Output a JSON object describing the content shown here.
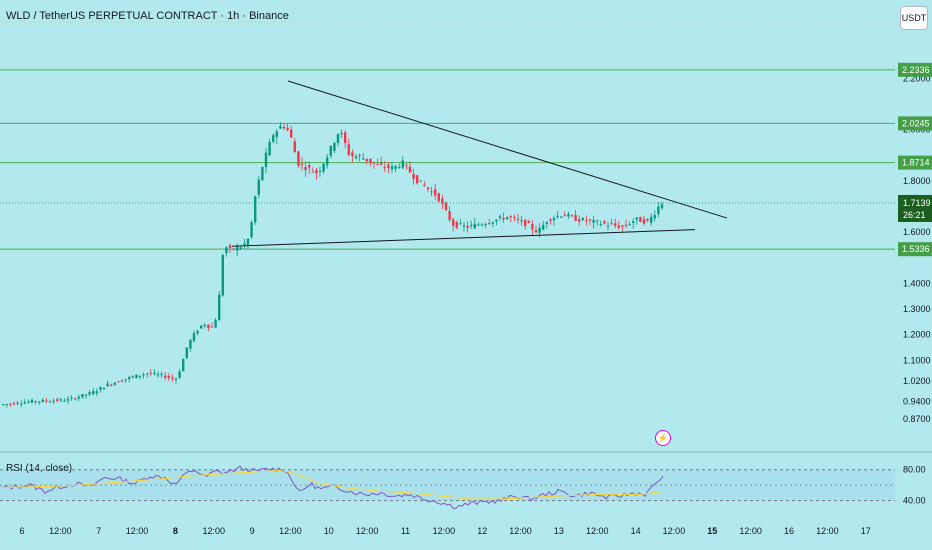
{
  "header": {
    "title": "WLD / TetherUS PERPETUAL CONTRACT · 1h · Binance",
    "currency": "USDT"
  },
  "chart_data": {
    "type": "candlestick",
    "ylim": [
      0.82,
      2.35
    ],
    "price_ticks": [
      "2.2000",
      "2.0000",
      "1.8000",
      "1.6000",
      "1.4000",
      "1.3000",
      "1.2000",
      "1.1000",
      "1.0200",
      "0.9400",
      "0.8700"
    ],
    "level_lines": [
      {
        "label": "2.2336",
        "value": 2.2336
      },
      {
        "label": "2.0245",
        "value": 2.0245
      },
      {
        "label": "1.8714",
        "value": 1.8714
      },
      {
        "label": "1.5336",
        "value": 1.5336
      }
    ],
    "current_price": {
      "label": "1.7139",
      "countdown": "26:21",
      "value": 1.7139
    },
    "x_ticks": [
      "6",
      "12:00",
      "7",
      "12:00",
      "8",
      "12:00",
      "9",
      "12:00",
      "10",
      "12:00",
      "11",
      "12:00",
      "12",
      "12:00",
      "13",
      "12:00",
      "14",
      "12:00",
      "15",
      "12:00",
      "16",
      "12:00",
      "17"
    ],
    "bold_x_ticks": [
      "8",
      "15"
    ],
    "triangle": {
      "upper": [
        [
          288,
          2.19
        ],
        [
          727,
          1.655
        ]
      ],
      "lower": [
        [
          232,
          1.545
        ],
        [
          695,
          1.61
        ]
      ]
    },
    "candle_path": [
      [
        0,
        0.925
      ],
      [
        35,
        0.94
      ],
      [
        70,
        0.945
      ],
      [
        95,
        0.975
      ],
      [
        110,
        1.005
      ],
      [
        130,
        1.03
      ],
      [
        150,
        1.05
      ],
      [
        165,
        1.04
      ],
      [
        178,
        1.025
      ],
      [
        183,
        1.07
      ],
      [
        190,
        1.16
      ],
      [
        198,
        1.21
      ],
      [
        206,
        1.245
      ],
      [
        214,
        1.225
      ],
      [
        220,
        1.28
      ],
      [
        226,
        1.55
      ],
      [
        232,
        1.53
      ],
      [
        245,
        1.545
      ],
      [
        252,
        1.58
      ],
      [
        258,
        1.75
      ],
      [
        265,
        1.86
      ],
      [
        275,
        1.98
      ],
      [
        285,
        2.02
      ],
      [
        292,
        1.99
      ],
      [
        300,
        1.87
      ],
      [
        310,
        1.85
      ],
      [
        320,
        1.83
      ],
      [
        330,
        1.9
      ],
      [
        342,
        2.0
      ],
      [
        352,
        1.9
      ],
      [
        365,
        1.89
      ],
      [
        380,
        1.86
      ],
      [
        395,
        1.85
      ],
      [
        405,
        1.87
      ],
      [
        420,
        1.8
      ],
      [
        440,
        1.74
      ],
      [
        455,
        1.63
      ],
      [
        470,
        1.62
      ],
      [
        490,
        1.64
      ],
      [
        510,
        1.66
      ],
      [
        530,
        1.63
      ],
      [
        540,
        1.6
      ],
      [
        550,
        1.65
      ],
      [
        565,
        1.67
      ],
      [
        580,
        1.65
      ],
      [
        595,
        1.64
      ],
      [
        610,
        1.63
      ],
      [
        625,
        1.62
      ],
      [
        638,
        1.65
      ],
      [
        650,
        1.64
      ],
      [
        658,
        1.68
      ],
      [
        663,
        1.7139
      ]
    ],
    "rsi": {
      "label": "RSI (14, close)",
      "levels": [
        "80.00",
        "40.00"
      ],
      "ylim": [
        20,
        90
      ],
      "rsi_path": [
        [
          0,
          56
        ],
        [
          15,
          58
        ],
        [
          30,
          60
        ],
        [
          45,
          52
        ],
        [
          60,
          58
        ],
        [
          75,
          62
        ],
        [
          90,
          58
        ],
        [
          105,
          70
        ],
        [
          120,
          68
        ],
        [
          135,
          62
        ],
        [
          150,
          72
        ],
        [
          165,
          70
        ],
        [
          175,
          60
        ],
        [
          185,
          74
        ],
        [
          195,
          80
        ],
        [
          205,
          70
        ],
        [
          215,
          78
        ],
        [
          225,
          76
        ],
        [
          240,
          82
        ],
        [
          255,
          78
        ],
        [
          270,
          81
        ],
        [
          285,
          80
        ],
        [
          293,
          65
        ],
        [
          300,
          50
        ],
        [
          310,
          62
        ],
        [
          320,
          55
        ],
        [
          335,
          58
        ],
        [
          350,
          52
        ],
        [
          365,
          48
        ],
        [
          380,
          50
        ],
        [
          395,
          46
        ],
        [
          410,
          48
        ],
        [
          425,
          42
        ],
        [
          440,
          38
        ],
        [
          455,
          32
        ],
        [
          470,
          36
        ],
        [
          485,
          38
        ],
        [
          500,
          40
        ],
        [
          515,
          46
        ],
        [
          530,
          42
        ],
        [
          545,
          48
        ],
        [
          560,
          52
        ],
        [
          575,
          46
        ],
        [
          590,
          50
        ],
        [
          605,
          44
        ],
        [
          620,
          46
        ],
        [
          635,
          50
        ],
        [
          645,
          48
        ],
        [
          652,
          56
        ],
        [
          658,
          66
        ],
        [
          664,
          72
        ]
      ],
      "ma_path": [
        [
          0,
          57
        ],
        [
          40,
          58
        ],
        [
          80,
          60
        ],
        [
          120,
          64
        ],
        [
          160,
          68
        ],
        [
          200,
          73
        ],
        [
          240,
          76
        ],
        [
          280,
          79
        ],
        [
          295,
          75
        ],
        [
          320,
          62
        ],
        [
          350,
          56
        ],
        [
          380,
          52
        ],
        [
          410,
          50
        ],
        [
          440,
          46
        ],
        [
          470,
          42
        ],
        [
          500,
          42
        ],
        [
          530,
          44
        ],
        [
          560,
          46
        ],
        [
          600,
          48
        ],
        [
          640,
          48
        ],
        [
          664,
          52
        ]
      ]
    }
  },
  "colors": {
    "background": "#b1e9ef",
    "up": "#089981",
    "down": "#f23645",
    "level": "#4caf50",
    "rsi_line": "#7e57c2",
    "rsi_ma": "#fdd835"
  },
  "icons": [
    "lightning-icon"
  ]
}
